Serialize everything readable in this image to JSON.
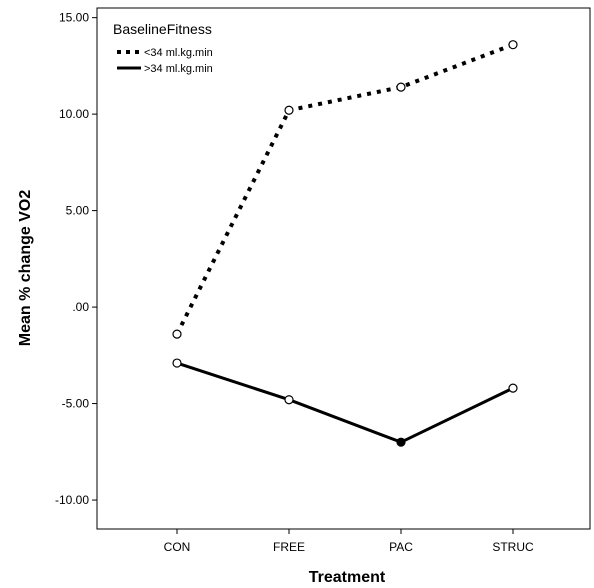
{
  "chart_data": {
    "type": "line",
    "title": "",
    "xlabel": "Treatment",
    "ylabel": "Mean % change VO2",
    "categories": [
      "CON",
      "FREE",
      "PAC",
      "STRUC"
    ],
    "ylim": [
      -11.5,
      15.5
    ],
    "y_ticks": [
      -10,
      -5,
      0,
      5,
      10,
      15
    ],
    "y_tick_labels": [
      "-10.00",
      "-5.00",
      ".00",
      "5.00",
      "10.00",
      "15.00"
    ],
    "grid": false,
    "legend": {
      "title": "BaselineFitness",
      "position": "top-left"
    },
    "series": [
      {
        "name": "<34 ml.kg.min",
        "line_style": "dotted",
        "values": [
          -1.4,
          10.2,
          11.4,
          13.6
        ],
        "marker_filled": [
          false,
          false,
          false,
          false
        ]
      },
      {
        "name": ">34 ml.kg.min",
        "line_style": "solid",
        "values": [
          -2.9,
          -4.8,
          -7.0,
          -4.2
        ],
        "marker_filled": [
          false,
          false,
          true,
          false
        ]
      }
    ]
  }
}
